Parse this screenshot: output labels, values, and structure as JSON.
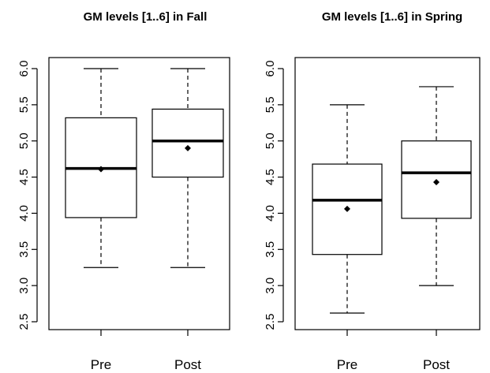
{
  "chart_data": [
    {
      "type": "boxplot",
      "title": "GM levels [1..6] in Fall",
      "xlabel": "",
      "ylabel": "",
      "ylim": [
        2.5,
        6.0
      ],
      "yticks": [
        "2.5",
        "3.0",
        "3.5",
        "4.0",
        "4.5",
        "5.0",
        "5.5",
        "6.0"
      ],
      "categories": [
        "Pre",
        "Post"
      ],
      "boxes": [
        {
          "category": "Pre",
          "min": 3.25,
          "q1": 3.94,
          "median": 4.62,
          "q3": 5.32,
          "max": 6.0,
          "mean": 4.61
        },
        {
          "category": "Post",
          "min": 3.25,
          "q1": 4.5,
          "median": 5.0,
          "q3": 5.44,
          "max": 6.0,
          "mean": 4.9
        }
      ],
      "grid": false
    },
    {
      "type": "boxplot",
      "title": "GM levels [1..6] in Spring",
      "xlabel": "",
      "ylabel": "",
      "ylim": [
        2.5,
        6.0
      ],
      "yticks": [
        "2.5",
        "3.0",
        "3.5",
        "4.0",
        "4.5",
        "5.0",
        "5.5",
        "6.0"
      ],
      "categories": [
        "Pre",
        "Post"
      ],
      "boxes": [
        {
          "category": "Pre",
          "min": 2.62,
          "q1": 3.43,
          "median": 4.18,
          "q3": 4.68,
          "max": 5.5,
          "mean": 4.06
        },
        {
          "category": "Post",
          "min": 3.0,
          "q1": 3.93,
          "median": 4.56,
          "q3": 5.0,
          "max": 5.75,
          "mean": 4.43
        }
      ],
      "grid": false
    }
  ]
}
